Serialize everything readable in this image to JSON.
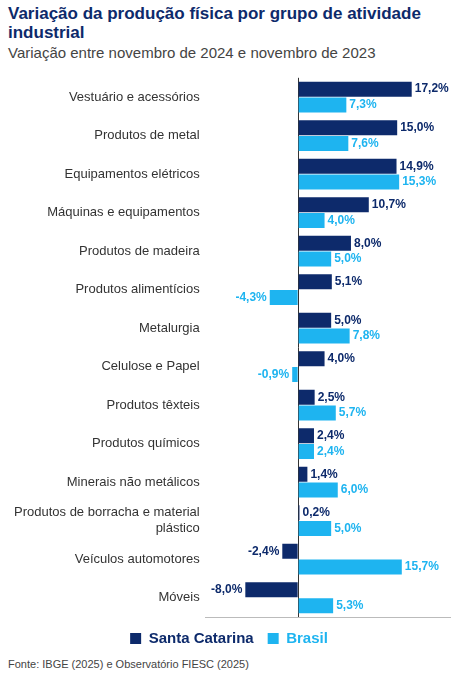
{
  "chart_data": {
    "type": "bar",
    "orientation": "horizontal",
    "title": "Variação da produção física por grupo de atividade industrial",
    "subtitle": "Variação entre novembro de 2024 e novembro de 2023",
    "note": "Fonte: IBGE (2025) e Observatório FIESC (2025)",
    "categories": [
      "Vestuário e acessórios",
      "Produtos de metal",
      "Equipamentos elétricos",
      "Máquinas e equipamentos",
      "Produtos de madeira",
      "Produtos alimentícios",
      "Metalurgia",
      "Celulose e Papel",
      "Produtos têxteis",
      "Produtos químicos",
      "Minerais não metálicos",
      "Produtos de borracha e material plástico",
      "Veículos automotores",
      "Móveis"
    ],
    "series": [
      {
        "name": "Santa Catarina",
        "color": "#0d2a6b",
        "values": [
          17.2,
          15.0,
          14.9,
          10.7,
          8.0,
          5.1,
          5.0,
          4.0,
          2.5,
          2.4,
          1.4,
          0.2,
          -2.4,
          -8.0
        ],
        "value_labels": [
          "17,2%",
          "15,0%",
          "14,9%",
          "10,7%",
          "8,0%",
          "5,1%",
          "5,0%",
          "4,0%",
          "2,5%",
          "2,4%",
          "1,4%",
          "0,2%",
          "-2,4%",
          "-8,0%"
        ]
      },
      {
        "name": "Brasil",
        "color": "#1eb4f0",
        "values": [
          7.3,
          7.6,
          15.3,
          4.0,
          5.0,
          -4.3,
          7.8,
          -0.9,
          5.7,
          2.4,
          6.0,
          5.0,
          15.7,
          5.3
        ],
        "value_labels": [
          "7,3%",
          "7,6%",
          "15,3%",
          "4,0%",
          "5,0%",
          "-4,3%",
          "7,8%",
          "-0,9%",
          "5,7%",
          "2,4%",
          "6,0%",
          "5,0%",
          "15,7%",
          "5,3%"
        ]
      }
    ],
    "xlim": [
      -14,
      23
    ],
    "xticks": [
      0
    ],
    "tick_labels": "y",
    "data_labels": true,
    "legend": "bottom"
  }
}
